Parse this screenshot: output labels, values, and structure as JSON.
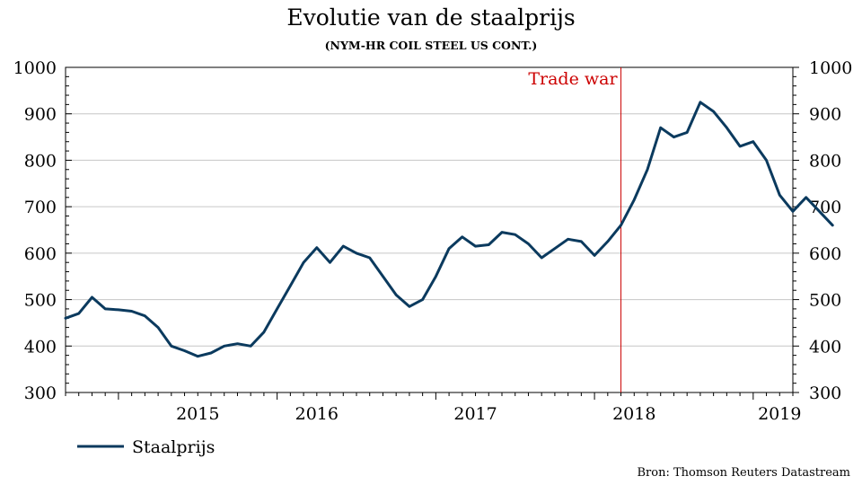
{
  "chart_data": {
    "type": "line",
    "title": "Evolutie van de staalprijs",
    "subtitle": "(NYM-HR COIL STEEL US CONT.)",
    "source": "Bron: Thomson Reuters Datastream",
    "ylim": [
      300,
      1000
    ],
    "y_ticks": [
      300,
      400,
      500,
      600,
      700,
      800,
      900,
      1000
    ],
    "y_tick_labels": [
      "300",
      "400",
      "500",
      "600",
      "700",
      "800",
      "900",
      "1000"
    ],
    "x_range": [
      "2014-09",
      "2019-04"
    ],
    "x_year_labels": [
      {
        "label": "2015",
        "x": "2015-07"
      },
      {
        "label": "2016",
        "x": "2016-04"
      },
      {
        "label": "2017",
        "x": "2017-04"
      },
      {
        "label": "2018",
        "x": "2018-04"
      },
      {
        "label": "2019",
        "x": "2019-03"
      }
    ],
    "grid": true,
    "legend_position": "bottom-left",
    "annotation": {
      "label": "Trade war",
      "x": "2018-03",
      "color": "#cc0000"
    },
    "series": [
      {
        "name": "Staalprijs",
        "color": "#0b3a5e",
        "points": [
          [
            "2014-09",
            460
          ],
          [
            "2014-10",
            470
          ],
          [
            "2014-11",
            505
          ],
          [
            "2014-12",
            480
          ],
          [
            "2015-01",
            478
          ],
          [
            "2015-02",
            475
          ],
          [
            "2015-03",
            465
          ],
          [
            "2015-04",
            440
          ],
          [
            "2015-05",
            400
          ],
          [
            "2015-06",
            390
          ],
          [
            "2015-07",
            378
          ],
          [
            "2015-08",
            385
          ],
          [
            "2015-09",
            400
          ],
          [
            "2015-10",
            405
          ],
          [
            "2015-11",
            400
          ],
          [
            "2015-12",
            430
          ],
          [
            "2016-01",
            480
          ],
          [
            "2016-02",
            530
          ],
          [
            "2016-03",
            580
          ],
          [
            "2016-04",
            612
          ],
          [
            "2016-05",
            580
          ],
          [
            "2016-06",
            615
          ],
          [
            "2016-07",
            600
          ],
          [
            "2016-08",
            590
          ],
          [
            "2016-09",
            550
          ],
          [
            "2016-10",
            510
          ],
          [
            "2016-11",
            485
          ],
          [
            "2016-12",
            500
          ],
          [
            "2017-01",
            550
          ],
          [
            "2017-02",
            610
          ],
          [
            "2017-03",
            635
          ],
          [
            "2017-04",
            615
          ],
          [
            "2017-05",
            618
          ],
          [
            "2017-06",
            645
          ],
          [
            "2017-07",
            640
          ],
          [
            "2017-08",
            620
          ],
          [
            "2017-09",
            590
          ],
          [
            "2017-10",
            610
          ],
          [
            "2017-11",
            630
          ],
          [
            "2017-12",
            625
          ],
          [
            "2018-01",
            595
          ],
          [
            "2018-02",
            625
          ],
          [
            "2018-03",
            660
          ],
          [
            "2018-04",
            715
          ],
          [
            "2018-05",
            780
          ],
          [
            "2018-06",
            870
          ],
          [
            "2018-07",
            850
          ],
          [
            "2018-08",
            860
          ],
          [
            "2018-09",
            925
          ],
          [
            "2018-10",
            905
          ],
          [
            "2018-11",
            870
          ],
          [
            "2018-12",
            830
          ],
          [
            "2019-01",
            840
          ],
          [
            "2019-02",
            800
          ],
          [
            "2019-03",
            725
          ],
          [
            "2019-04",
            690
          ],
          [
            "2019-05",
            720
          ],
          [
            "2019-06",
            690
          ],
          [
            "2019-07",
            660
          ]
        ]
      }
    ]
  }
}
